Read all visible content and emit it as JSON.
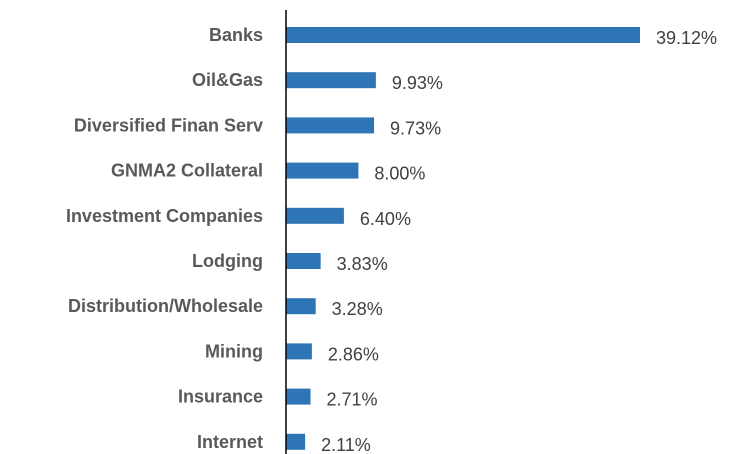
{
  "chart_data": {
    "type": "bar",
    "orientation": "horizontal",
    "title": "",
    "xlabel": "",
    "ylabel": "",
    "grid": false,
    "legend": "none",
    "bar_color": "#2E75B6",
    "axis_color": "#000000",
    "categories": [
      "Banks",
      "Oil&Gas",
      "Diversified Finan Serv",
      "GNMA2 Collateral",
      "Investment Companies",
      "Lodging",
      "Distribution/Wholesale",
      "Mining",
      "Insurance",
      "Internet"
    ],
    "values": [
      39.12,
      9.93,
      9.73,
      8.0,
      6.4,
      3.83,
      3.28,
      2.86,
      2.71,
      2.11
    ],
    "value_labels": [
      "39.12%",
      "9.93%",
      "9.73%",
      "8.00%",
      "6.40%",
      "3.83%",
      "3.28%",
      "2.86%",
      "2.71%",
      "2.11%"
    ],
    "xlim": [
      0,
      40
    ]
  }
}
